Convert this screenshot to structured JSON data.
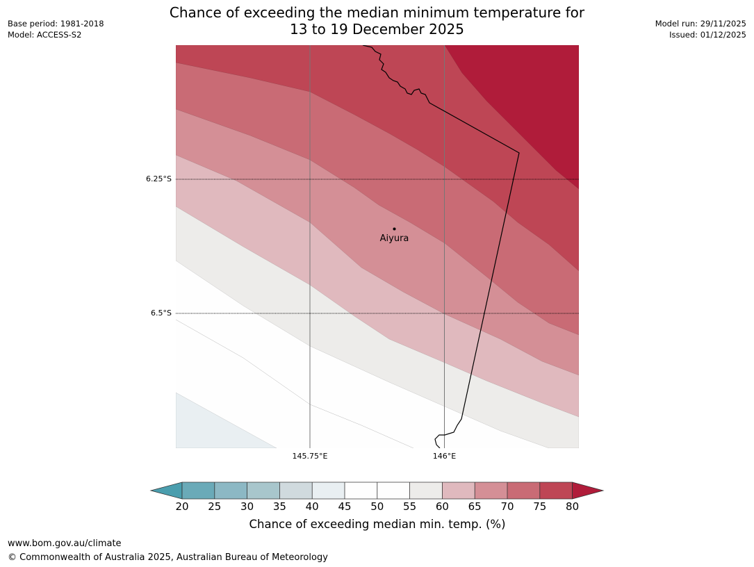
{
  "header": {
    "title_line1": "Chance of exceeding the median minimum temperature for",
    "title_line2": "13 to 19 December 2025",
    "base_period": "Base period: 1981-2018",
    "model": "Model: ACCESS-S2",
    "model_run": "Model run: 29/11/2025",
    "issued": "Issued: 01/12/2025"
  },
  "map": {
    "latitude_labels": [
      "6.25°S",
      "6.5°S"
    ],
    "longitude_labels": [
      "145.75°E",
      "146°E"
    ],
    "place": {
      "name": "Aiyura"
    },
    "colors": {
      "band_20_25": "#6aaab8",
      "band_25_30": "#8cb8c4",
      "band_30_35": "#a8c6cc",
      "band_35_40": "#d0dade",
      "band_40_45": "#e9eff2",
      "band_45_50": "#fefefe",
      "band_50_55": "#fefefe",
      "band_55_60": "#edecea",
      "band_60_65": "#e0b9be",
      "band_65_70": "#d48f96",
      "band_70_75": "#c96b75",
      "band_75_80": "#be4655",
      "band_over_80": "#b01c3a",
      "band_under_20": "#4a9eae"
    }
  },
  "colorbar": {
    "ticks": [
      "20",
      "25",
      "30",
      "35",
      "40",
      "45",
      "50",
      "55",
      "60",
      "65",
      "70",
      "75",
      "80"
    ],
    "label": "Chance of exceeding median min. temp. (%)"
  },
  "footer": {
    "website": "www.bom.gov.au/climate",
    "copyright": "© Commonwealth of Australia 2025, Australian Bureau of Meteorology"
  }
}
